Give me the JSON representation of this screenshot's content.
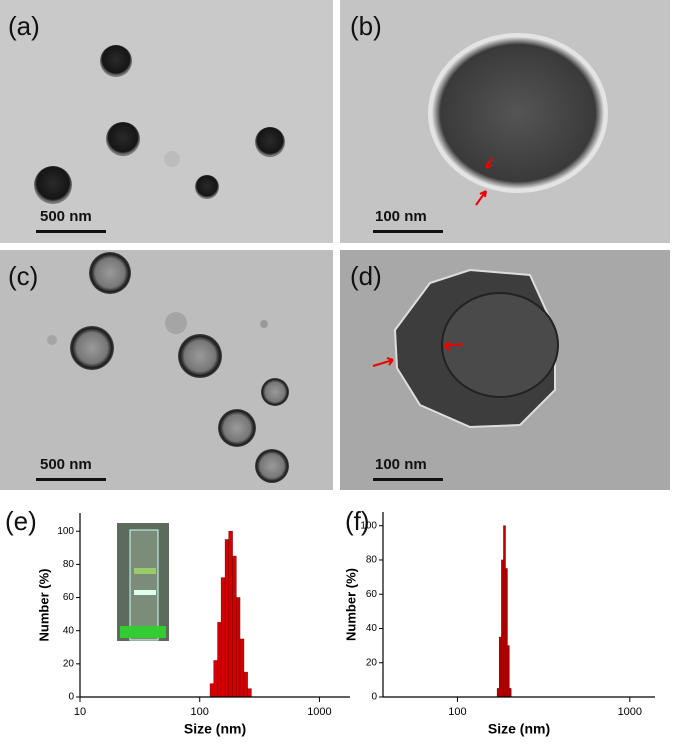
{
  "panels": [
    {
      "label": "(a)",
      "scale_bar": "500 nm"
    },
    {
      "label": "(b)",
      "scale_bar": "100 nm"
    },
    {
      "label": "(c)",
      "scale_bar": "500 nm"
    },
    {
      "label": "(d)",
      "scale_bar": "100 nm"
    }
  ],
  "chart_data": [
    {
      "type": "histogram",
      "panel_label": "(e)",
      "x_label": "Size (nm)",
      "y_label": "Number (%)",
      "xscale": "log",
      "bins": [
        122,
        131,
        141,
        151,
        163,
        175,
        188,
        202,
        217,
        234,
        251,
        270
      ],
      "values": [
        8,
        22,
        45,
        72,
        95,
        100,
        85,
        60,
        35,
        15,
        5
      ],
      "color": "#d40000",
      "xlim": [
        10,
        1800
      ],
      "xticks": [
        10,
        100,
        1000
      ],
      "ylim": [
        0,
        111
      ],
      "yticks": [
        0,
        20,
        40,
        60,
        80,
        100
      ]
    },
    {
      "type": "histogram",
      "panel_label": "(f)",
      "x_label": "Size (nm)",
      "y_label": "Number (%)",
      "xscale": "log",
      "bins": [
        170,
        175,
        180,
        185,
        190,
        195,
        200,
        205
      ],
      "values": [
        5,
        35,
        80,
        100,
        75,
        30,
        5
      ],
      "color": "#b00000",
      "xlim": [
        37,
        1400
      ],
      "xticks": [
        100,
        1000
      ],
      "ylim": [
        0,
        108
      ],
      "yticks": [
        0,
        20,
        40,
        60,
        80,
        100
      ]
    }
  ]
}
